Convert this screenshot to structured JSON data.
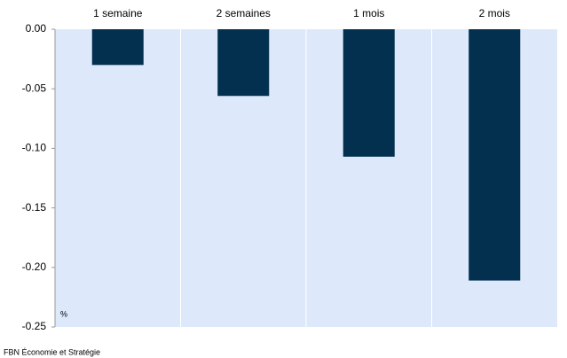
{
  "chart_data": {
    "type": "bar",
    "categories": [
      "1 semaine",
      "2 semaines",
      "1 mois",
      "2 mois"
    ],
    "values": [
      -0.03,
      -0.056,
      -0.107,
      -0.211
    ],
    "color": "#02304e",
    "ylim": [
      -0.25,
      0
    ],
    "yticks": [
      {
        "value": 0,
        "label": "0.00"
      },
      -0.05,
      {
        "value": -0.1,
        "label": "-0.10"
      },
      -0.15,
      {
        "value": -0.2,
        "label": "-0.20"
      },
      -0.25
    ],
    "unit_label": "%",
    "source": "FBN Économie et Stratégie",
    "grid": true
  }
}
